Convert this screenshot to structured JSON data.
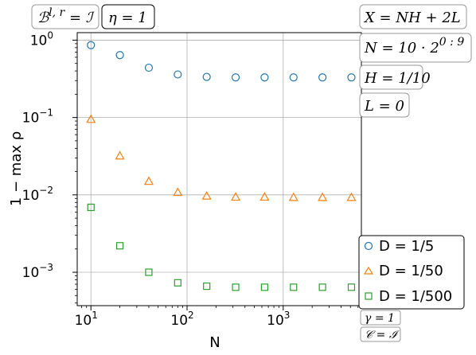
{
  "chart_data": {
    "type": "scatter",
    "xlabel": "N",
    "ylabel": "1 − max ρ",
    "xscale": "log",
    "yscale": "log",
    "xlim": [
      7.2,
      6500
    ],
    "ylim": [
      0.00037,
      1.25
    ],
    "grid": true,
    "legend_placement": "lower-right",
    "x": [
      10,
      20,
      40,
      80,
      160,
      320,
      640,
      1280,
      2560,
      5120
    ],
    "x_ticks": [
      {
        "value": 10,
        "base": "10",
        "exp": "1"
      },
      {
        "value": 100,
        "base": "10",
        "exp": "2"
      },
      {
        "value": 1000,
        "base": "10",
        "exp": "3"
      }
    ],
    "y_ticks": [
      {
        "value": 1,
        "base": "10",
        "exp": "0"
      },
      {
        "value": 0.1,
        "base": "10",
        "exp": "−1"
      },
      {
        "value": 0.01,
        "base": "10",
        "exp": "−2"
      },
      {
        "value": 0.001,
        "base": "10",
        "exp": "−3"
      }
    ],
    "series": [
      {
        "name": "D = 1/5",
        "marker": "circle",
        "color": "#1f77b4",
        "values": [
          0.86,
          0.64,
          0.44,
          0.36,
          0.335,
          0.33,
          0.33,
          0.33,
          0.33,
          0.33
        ]
      },
      {
        "name": "D = 1/50",
        "marker": "triangle",
        "color": "#ff7f0e",
        "values": [
          0.095,
          0.032,
          0.015,
          0.0108,
          0.0097,
          0.0094,
          0.0094,
          0.0093,
          0.0093,
          0.0093
        ]
      },
      {
        "name": "D = 1/500",
        "marker": "square",
        "color": "#2ca02c",
        "values": [
          0.0069,
          0.0022,
          0.001,
          0.00073,
          0.00066,
          0.00064,
          0.00064,
          0.00064,
          0.00064,
          0.00064
        ]
      }
    ],
    "annotations": {
      "top_left": [
        "ℬ^{l,r} = ℐ",
        "η = 1"
      ],
      "top_right": [
        "X = NH + 2L",
        "N = 10 · 2^{0:9}",
        "H = 1/10",
        "L = 0"
      ],
      "bottom_right": [
        "γ = 1",
        "𝒞 = ℐ"
      ]
    }
  }
}
